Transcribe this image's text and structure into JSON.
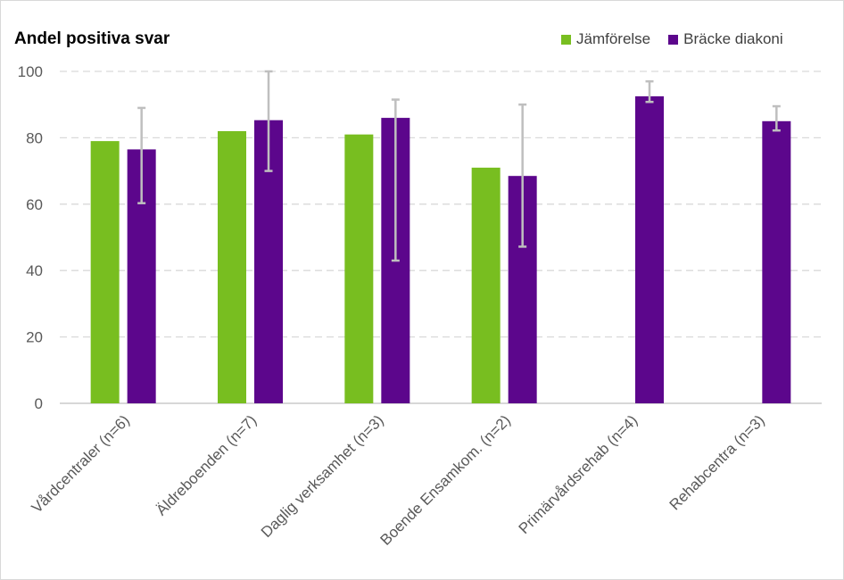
{
  "chart_data": {
    "type": "bar",
    "title": "Andel positiva svar",
    "xlabel": "",
    "ylabel": "",
    "ylim": [
      0,
      100
    ],
    "yticks": [
      0,
      20,
      40,
      60,
      80,
      100
    ],
    "grid": true,
    "legend_position": "top-right",
    "categories": [
      "Vårdcentraler (n=6)",
      "Äldreboenden (n=7)",
      "Daglig verksamhet (n=3)",
      "Boende Ensamkom. (n=2)",
      "Primärvårdsrehab (n=4)",
      "Rehabcentra (n=3)"
    ],
    "series": [
      {
        "name": "Jämförelse",
        "color": "#78be20",
        "values": [
          79,
          82,
          81,
          71,
          null,
          null
        ]
      },
      {
        "name": "Bräcke diakoni",
        "color": "#5c068c",
        "values": [
          76.5,
          85.3,
          86,
          68.5,
          92.5,
          85
        ],
        "error_low": [
          60.3,
          70,
          43,
          47.2,
          90.8,
          82.2
        ],
        "error_high": [
          89,
          100,
          91.5,
          90,
          97,
          89.5
        ]
      }
    ]
  }
}
